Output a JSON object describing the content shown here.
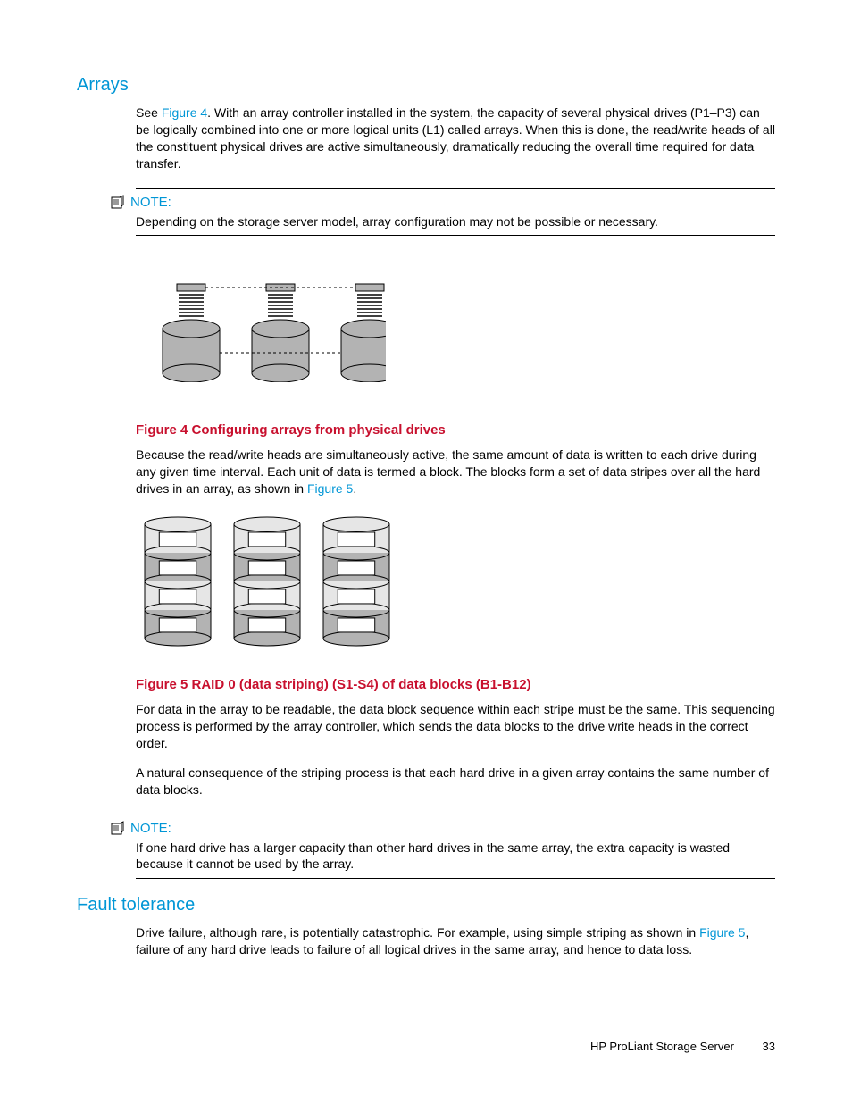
{
  "colors": {
    "heading": "#0096d6",
    "link": "#0096d6",
    "caption": "#c8102e",
    "note_label": "#0096d6",
    "body": "#000000",
    "drive_fill": "#b3b3b3",
    "drive_stroke": "#000000",
    "page_bg": "#ffffff"
  },
  "typography": {
    "heading_fontsize": 20,
    "body_fontsize": 14,
    "caption_fontsize": 15,
    "note_label_fontsize": 15,
    "footer_fontsize": 13
  },
  "sections": {
    "arrays": {
      "heading": "Arrays",
      "p1_pre": "See ",
      "p1_link": "Figure 4",
      "p1_post": ".  With an array controller installed in the system, the capacity of several physical drives (P1–P3) can be logically combined into one or more logical units (L1) called arrays.  When this is done, the read/write heads of all the constituent physical drives are active simultaneously, dramatically reducing the overall time required for data transfer."
    },
    "note1": {
      "label": "NOTE:",
      "text": "Depending on the storage server model, array configuration may not be possible or necessary."
    },
    "figure4": {
      "caption": "Figure 4 Configuring arrays from physical drives",
      "diagram": {
        "type": "infographic",
        "drives": 3,
        "drive_width": 64,
        "drive_height": 60,
        "spacing": 100,
        "connector_lines": 7,
        "connector_cap_fill": "#b3b3b3",
        "dashed_top": true,
        "dashed_mid": true
      }
    },
    "p2_pre": "Because the read/write heads are simultaneously active, the same amount of data is written to each drive during any given time interval.  Each unit of data is termed a block.  The blocks form a set of data stripes over all the hard drives in an array, as shown in ",
    "p2_link": "Figure 5",
    "p2_post": ".",
    "figure5": {
      "caption": "Figure 5 RAID 0 (data striping) (S1-S4) of data blocks (B1-B12)",
      "diagram": {
        "type": "infographic",
        "stacks": 3,
        "segments_per_stack": 4,
        "stack_width": 74,
        "segment_height": 32,
        "spacing": 100,
        "alt_fill_light": "#e6e6e6",
        "alt_fill_dark": "#b3b3b3",
        "block_inset_fill": "#ffffff"
      }
    },
    "p3": "For data in the array to be readable, the data block sequence within each stripe must be the same.  This sequencing process is performed by the array controller, which sends the data blocks to the drive write heads in the correct order.",
    "p4": "A natural consequence of the striping process is that each hard drive in a given array contains the same number of data blocks.",
    "note2": {
      "label": "NOTE:",
      "text": "If one hard drive has a larger capacity than other hard drives in the same array, the extra capacity is wasted because it cannot be used by the array."
    },
    "fault": {
      "heading": "Fault tolerance",
      "p1_pre": "Drive failure, although rare, is potentially catastrophic.  For example, using simple striping as shown in ",
      "p1_link": "Figure 5",
      "p1_post": ", failure of any hard drive leads to failure of all logical drives in the same array, and hence to data loss."
    }
  },
  "footer": {
    "text": "HP ProLiant Storage Server",
    "page": "33"
  }
}
